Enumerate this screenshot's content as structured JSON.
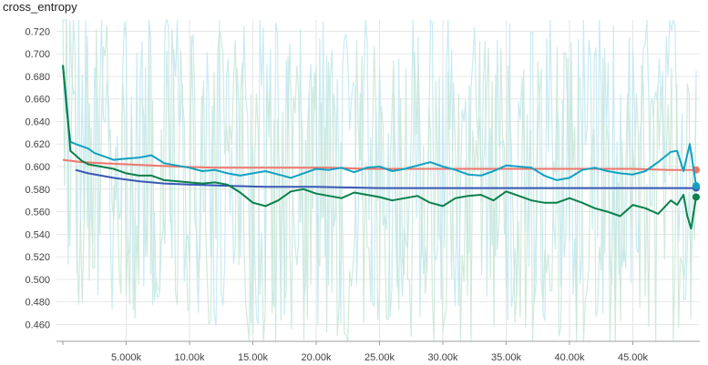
{
  "chart_data": {
    "type": "line",
    "title": "cross_entropy",
    "xlabel": "",
    "ylabel": "",
    "xlim": [
      0,
      50000
    ],
    "ylim": [
      0.445,
      0.73
    ],
    "grid": true,
    "x_ticks": [
      {
        "value": 5000,
        "label": "5.000k"
      },
      {
        "value": 10000,
        "label": "10.00k"
      },
      {
        "value": 15000,
        "label": "15.00k"
      },
      {
        "value": 20000,
        "label": "20.00k"
      },
      {
        "value": 25000,
        "label": "25.00k"
      },
      {
        "value": 30000,
        "label": "30.00k"
      },
      {
        "value": 35000,
        "label": "35.00k"
      },
      {
        "value": 40000,
        "label": "40.00k"
      },
      {
        "value": 45000,
        "label": "45.00k"
      }
    ],
    "y_ticks": [
      {
        "value": 0.72,
        "label": "0.720"
      },
      {
        "value": 0.7,
        "label": "0.700"
      },
      {
        "value": 0.68,
        "label": "0.680"
      },
      {
        "value": 0.66,
        "label": "0.660"
      },
      {
        "value": 0.64,
        "label": "0.640"
      },
      {
        "value": 0.62,
        "label": "0.620"
      },
      {
        "value": 0.6,
        "label": "0.600"
      },
      {
        "value": 0.58,
        "label": "0.580"
      },
      {
        "value": 0.56,
        "label": "0.560"
      },
      {
        "value": 0.54,
        "label": "0.540"
      },
      {
        "value": 0.52,
        "label": "0.520"
      },
      {
        "value": 0.5,
        "label": "0.500"
      },
      {
        "value": 0.48,
        "label": "0.480"
      },
      {
        "value": 0.46,
        "label": "0.460"
      }
    ],
    "series": [
      {
        "color": "#f0756b",
        "x": [
          0,
          1500,
          3000,
          5000,
          7000,
          9000,
          12000,
          15000,
          18000,
          21000,
          24000,
          27000,
          30000,
          33000,
          36000,
          39000,
          42000,
          45000,
          48000,
          49500,
          50000
        ],
        "y": [
          0.606,
          0.604,
          0.603,
          0.602,
          0.601,
          0.6,
          0.599,
          0.599,
          0.599,
          0.599,
          0.598,
          0.598,
          0.598,
          0.598,
          0.598,
          0.598,
          0.598,
          0.598,
          0.597,
          0.597,
          0.597
        ]
      },
      {
        "color": "#3858b6",
        "x": [
          1000,
          2000,
          4000,
          6000,
          8000,
          10000,
          13000,
          16000,
          20000,
          25000,
          30000,
          35000,
          40000,
          45000,
          49000,
          50000
        ],
        "y": [
          0.597,
          0.594,
          0.59,
          0.587,
          0.585,
          0.584,
          0.583,
          0.582,
          0.582,
          0.581,
          0.581,
          0.581,
          0.581,
          0.581,
          0.581,
          0.581
        ]
      },
      {
        "color": "#12a1c2",
        "x": [
          0,
          300,
          600,
          1000,
          1500,
          2000,
          2500,
          3000,
          4000,
          5000,
          6000,
          7000,
          8000,
          9000,
          10000,
          11000,
          12000,
          13000,
          14000,
          15000,
          16000,
          17000,
          18000,
          19000,
          20000,
          21000,
          22000,
          23000,
          24000,
          25000,
          26000,
          27000,
          28000,
          29000,
          30000,
          31000,
          32000,
          33000,
          34000,
          35000,
          36000,
          37000,
          38000,
          39000,
          40000,
          41000,
          42000,
          43000,
          44000,
          45000,
          46000,
          47000,
          48000,
          48500,
          49000,
          49500,
          50000
        ],
        "y": [
          0.69,
          0.65,
          0.622,
          0.62,
          0.618,
          0.616,
          0.612,
          0.61,
          0.606,
          0.607,
          0.608,
          0.61,
          0.603,
          0.601,
          0.599,
          0.596,
          0.597,
          0.594,
          0.592,
          0.594,
          0.596,
          0.593,
          0.59,
          0.594,
          0.598,
          0.597,
          0.599,
          0.595,
          0.599,
          0.6,
          0.596,
          0.598,
          0.601,
          0.604,
          0.6,
          0.597,
          0.593,
          0.592,
          0.596,
          0.601,
          0.6,
          0.599,
          0.592,
          0.588,
          0.59,
          0.597,
          0.599,
          0.596,
          0.594,
          0.593,
          0.596,
          0.604,
          0.613,
          0.614,
          0.596,
          0.62,
          0.583
        ]
      },
      {
        "color": "#0b7f4b",
        "x": [
          0,
          300,
          600,
          1000,
          1500,
          2000,
          3000,
          4000,
          5000,
          6000,
          7000,
          8000,
          9000,
          10000,
          11000,
          12000,
          13000,
          14000,
          15000,
          16000,
          17000,
          18000,
          19000,
          20000,
          21000,
          22000,
          23000,
          24000,
          25000,
          26000,
          27000,
          28000,
          29000,
          30000,
          31000,
          32000,
          33000,
          34000,
          35000,
          36000,
          37000,
          38000,
          39000,
          40000,
          41000,
          42000,
          43000,
          44000,
          45000,
          46000,
          47000,
          48000,
          48500,
          49000,
          49300,
          49600,
          50000
        ],
        "y": [
          0.69,
          0.655,
          0.614,
          0.61,
          0.605,
          0.602,
          0.6,
          0.598,
          0.594,
          0.592,
          0.592,
          0.588,
          0.587,
          0.586,
          0.585,
          0.586,
          0.584,
          0.577,
          0.568,
          0.565,
          0.57,
          0.578,
          0.58,
          0.576,
          0.574,
          0.572,
          0.577,
          0.575,
          0.573,
          0.57,
          0.572,
          0.574,
          0.568,
          0.565,
          0.572,
          0.574,
          0.575,
          0.57,
          0.578,
          0.574,
          0.57,
          0.568,
          0.568,
          0.572,
          0.568,
          0.563,
          0.56,
          0.556,
          0.566,
          0.563,
          0.558,
          0.57,
          0.566,
          0.575,
          0.556,
          0.545,
          0.573
        ]
      }
    ]
  },
  "background": {
    "noise_colors": [
      "#bfe8f1",
      "#c9e6d6"
    ],
    "noise_low": 0.445,
    "noise_high": 0.73
  }
}
